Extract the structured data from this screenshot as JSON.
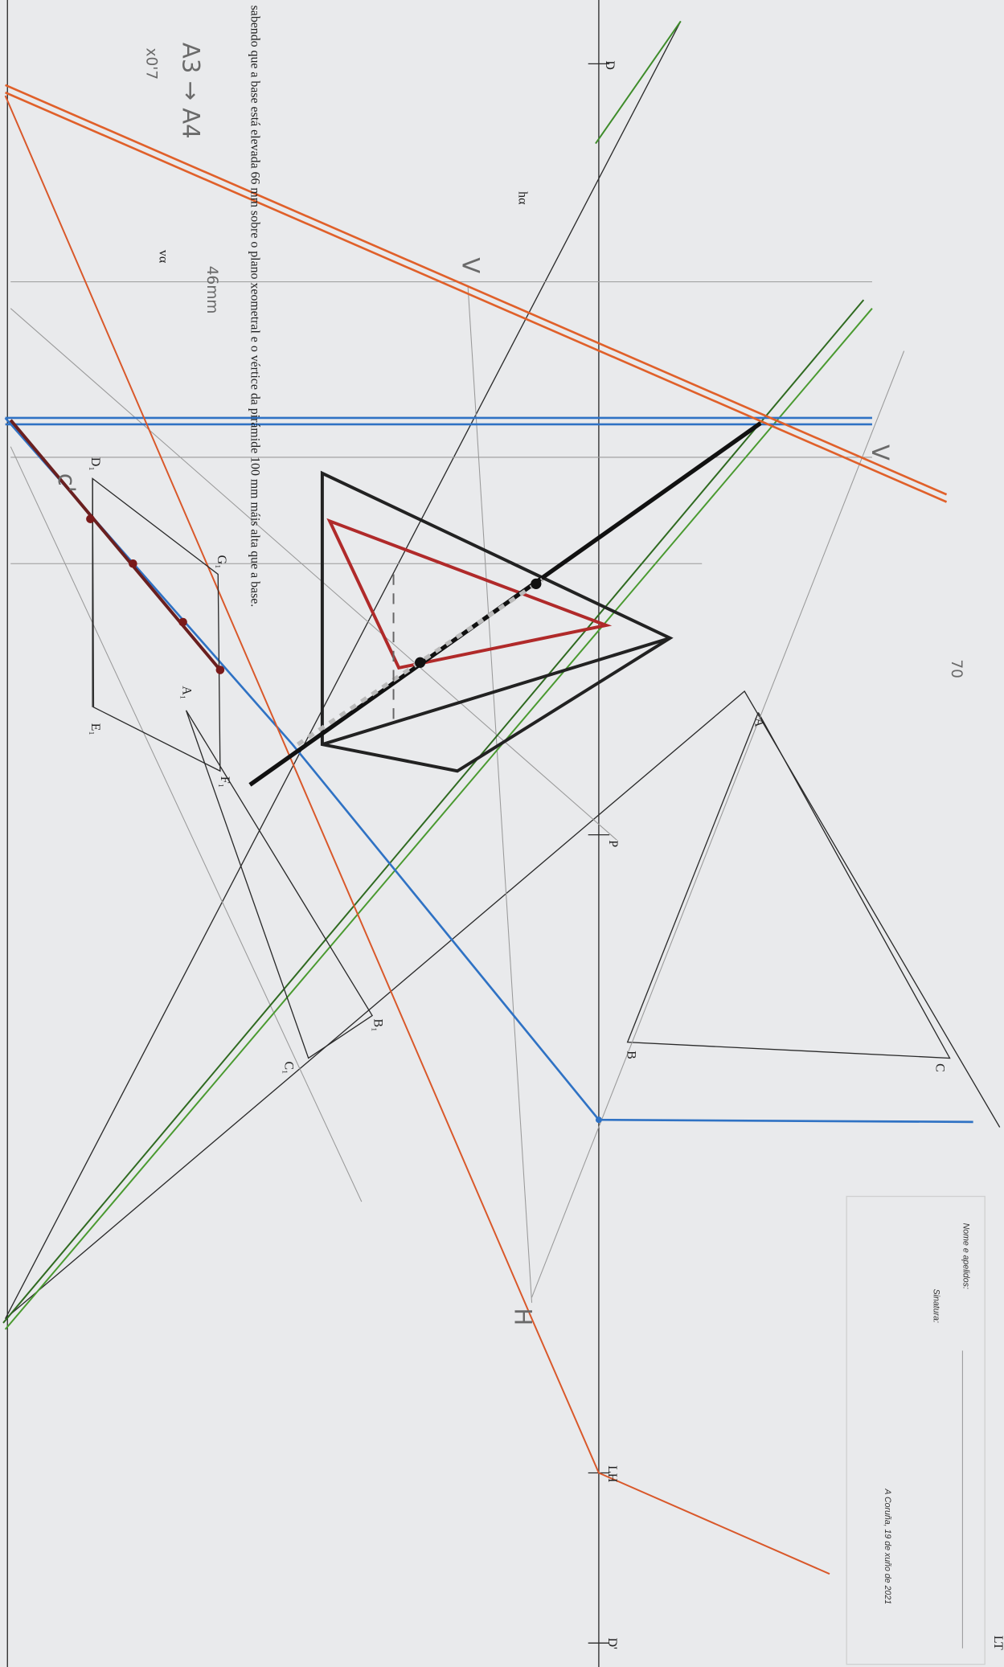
{
  "instruction": "sabendo que a base está elevada 66 mm sobre o plano xeometral e o vértice da pirámide 100 mm máis alta que a base.",
  "notes": {
    "scale": "A3 → A4",
    "factor": "x0'7",
    "measure": "46mm",
    "measure2": "70"
  },
  "labels": {
    "d": "D",
    "h_alpha": "hα",
    "v_alpha": "vα",
    "d1": "D₁",
    "g1": "G₁",
    "a1": "A₁",
    "e1": "E₁",
    "f1": "F₁",
    "p": "P",
    "a": "A",
    "b": "B",
    "c": "C",
    "b1": "B₁",
    "c1": "C₁",
    "lh": "LH",
    "d_prime": "D'",
    "lt": "LT",
    "c_prime": "c'",
    "h": "H",
    "v1": "V",
    "v2": "V"
  },
  "title_block": {
    "name": "Nome e apelidos:",
    "signature": "Sinatura:",
    "place_date": "A Coruña, 19 de xuño de 2021"
  }
}
